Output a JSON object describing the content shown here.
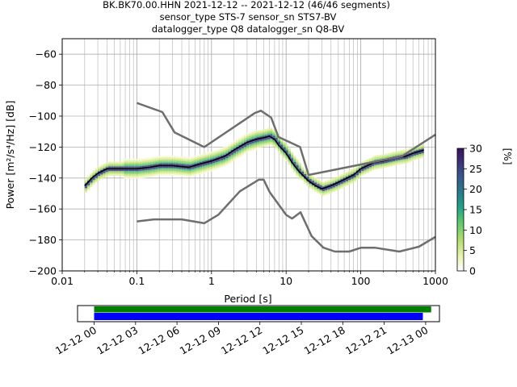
{
  "chart_data": [
    {
      "type": "heatmap",
      "title": [
        "BK.BK70.00.HHN   2021-12-12 -- 2021-12-12  (46/46 segments)",
        "sensor_type STS-7 sensor_sn STS7-BV",
        "datalogger_type Q8 datalogger_sn Q8-BV"
      ],
      "xlabel": "Period [s]",
      "ylabel": "Power [m²/s⁴/Hz] [dB]",
      "xscale": "log",
      "xlim": [
        0.01,
        1000
      ],
      "ylim": [
        -200,
        -50
      ],
      "xticks": [
        "0.01",
        "0.1",
        "1",
        "10",
        "100",
        "1000"
      ],
      "yticks": [
        "−200",
        "−180",
        "−160",
        "−140",
        "−120",
        "−100",
        "−80",
        "−60"
      ],
      "grid": true,
      "colorbar": {
        "label": "[%]",
        "range": [
          0,
          30
        ],
        "ticks": [
          "0",
          "5",
          "10",
          "15",
          "20",
          "25",
          "30"
        ]
      },
      "series": [
        {
          "role": "mean",
          "color": "#000000",
          "points": [
            [
              0.02,
              -145
            ],
            [
              0.025,
              -140
            ],
            [
              0.03,
              -137
            ],
            [
              0.04,
              -134
            ],
            [
              0.06,
              -134
            ],
            [
              0.08,
              -134
            ],
            [
              0.1,
              -134
            ],
            [
              0.15,
              -133
            ],
            [
              0.2,
              -132
            ],
            [
              0.3,
              -132
            ],
            [
              0.5,
              -133
            ],
            [
              0.7,
              -131
            ],
            [
              1,
              -129
            ],
            [
              1.5,
              -126
            ],
            [
              2,
              -122
            ],
            [
              3,
              -117
            ],
            [
              4,
              -115
            ],
            [
              5,
              -114
            ],
            [
              6,
              -113
            ],
            [
              7,
              -115
            ],
            [
              8,
              -119
            ],
            [
              10,
              -124
            ],
            [
              12,
              -130
            ],
            [
              15,
              -136
            ],
            [
              20,
              -142
            ],
            [
              25,
              -145
            ],
            [
              30,
              -147
            ],
            [
              40,
              -145
            ],
            [
              60,
              -141
            ],
            [
              80,
              -138
            ],
            [
              100,
              -134
            ],
            [
              150,
              -130
            ],
            [
              200,
              -129
            ],
            [
              300,
              -127
            ],
            [
              400,
              -126
            ],
            [
              500,
              -124
            ],
            [
              700,
              -122
            ]
          ]
        },
        {
          "role": "noise-model-high",
          "color": "#6e6e6e",
          "points": [
            [
              0.1,
              -91.5
            ],
            [
              0.22,
              -97.4
            ],
            [
              0.32,
              -110.5
            ],
            [
              0.8,
              -120
            ],
            [
              3.8,
              -98
            ],
            [
              4.6,
              -96.5
            ],
            [
              6.3,
              -101
            ],
            [
              7.9,
              -113.5
            ],
            [
              15.4,
              -120
            ],
            [
              20,
              -138
            ],
            [
              354.8,
              -126
            ],
            [
              1000,
              -112
            ]
          ]
        },
        {
          "role": "noise-model-low",
          "color": "#6e6e6e",
          "points": [
            [
              0.1,
              -168
            ],
            [
              0.17,
              -166.7
            ],
            [
              0.4,
              -166.7
            ],
            [
              0.8,
              -169.2
            ],
            [
              1.24,
              -163.7
            ],
            [
              2.4,
              -148.6
            ],
            [
              4.3,
              -141.1
            ],
            [
              5,
              -141.1
            ],
            [
              6,
              -149
            ],
            [
              10,
              -163.8
            ],
            [
              12,
              -166.2
            ],
            [
              15.6,
              -162.1
            ],
            [
              21.9,
              -177.5
            ],
            [
              31.6,
              -185
            ],
            [
              45,
              -187.5
            ],
            [
              70,
              -187.5
            ],
            [
              101,
              -185
            ],
            [
              154,
              -185
            ],
            [
              328,
              -187.5
            ],
            [
              600,
              -184.4
            ],
            [
              1000,
              -178
            ]
          ]
        }
      ]
    },
    {
      "type": "timeline",
      "xticks": [
        "12-12 00",
        "12-12 03",
        "12-12 06",
        "12-12 09",
        "12-12 12",
        "12-12 15",
        "12-12 18",
        "12-12 21",
        "12-13 00"
      ],
      "xlim_hours": [
        -1.2,
        25
      ],
      "bars": [
        {
          "role": "data-coverage",
          "color": "#008000",
          "start_hour": 0,
          "end_hour": 24.4
        },
        {
          "role": "psd-segments",
          "color": "#0000ff",
          "start_hour": 0,
          "end_hour": 23.8
        }
      ]
    }
  ]
}
